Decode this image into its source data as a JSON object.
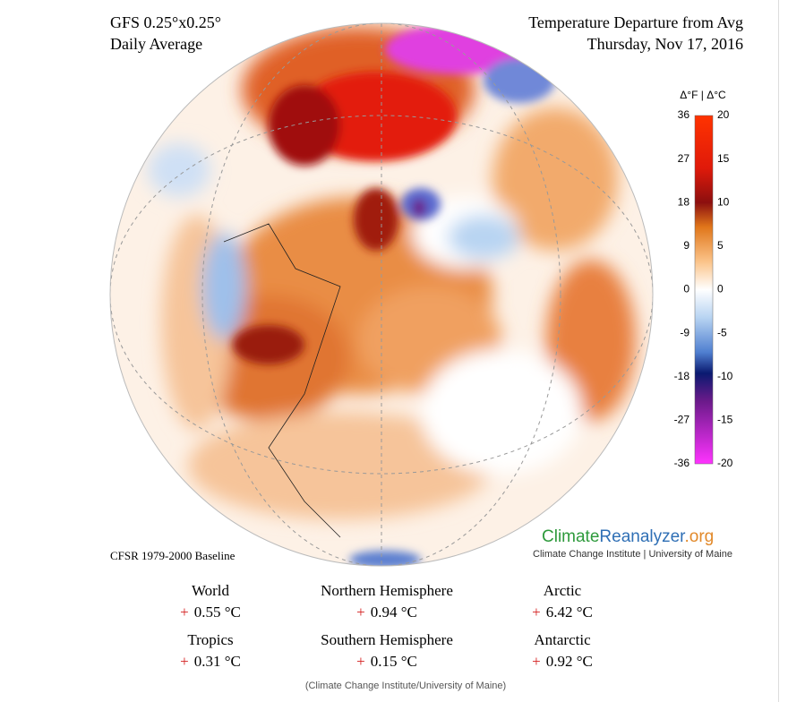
{
  "header": {
    "model": "GFS 0.25°x0.25°",
    "period": "Daily Average",
    "title": "Temperature Departure from Avg",
    "date": "Thursday, Nov 17, 2016"
  },
  "legend": {
    "title": "Δ°F | Δ°C",
    "fahrenheit": [
      "36",
      "27",
      "18",
      "9",
      "0",
      "-9",
      "-18",
      "-27",
      "-36"
    ],
    "celsius": [
      "20",
      "15",
      "10",
      "5",
      "0",
      "-5",
      "-10",
      "-15",
      "-20"
    ]
  },
  "baseline": "CFSR 1979-2000 Baseline",
  "logo": {
    "part1": "Climate",
    "part2": "Reanalyzer",
    "part3": ".org",
    "subtitle": "Climate Change Institute | University of Maine"
  },
  "stats": [
    {
      "label": "World",
      "sign": "+",
      "value": "0.55 °C"
    },
    {
      "label": "Northern Hemisphere",
      "sign": "+",
      "value": "0.94 °C"
    },
    {
      "label": "Arctic",
      "sign": "+",
      "value": "6.42 °C"
    },
    {
      "label": "Tropics",
      "sign": "+",
      "value": "0.31 °C"
    },
    {
      "label": "Southern Hemisphere",
      "sign": "+",
      "value": "0.15 °C"
    },
    {
      "label": "Antarctic",
      "sign": "+",
      "value": "0.92 °C"
    }
  ],
  "caption": "(Climate Change Institute/University of Maine)"
}
